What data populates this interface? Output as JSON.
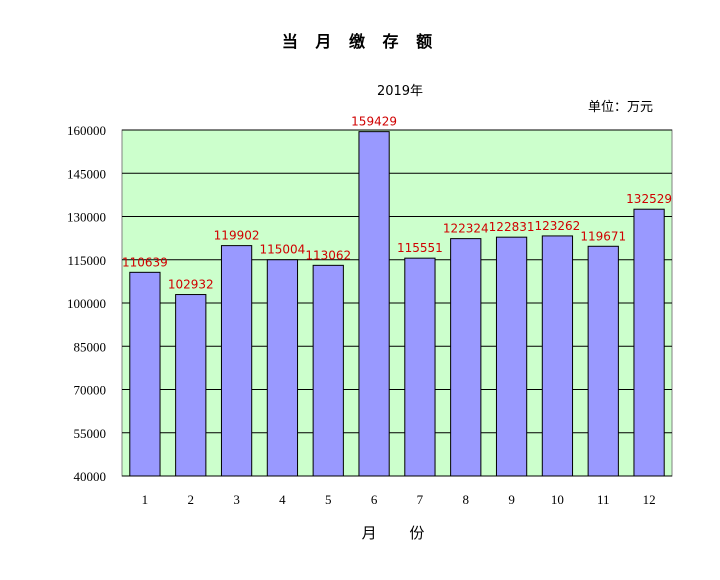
{
  "chart_data": {
    "type": "bar",
    "title": "当 月 缴 存 额",
    "subtitle": "2019年",
    "unit_label": "单位：万元",
    "xlabel": "月  份",
    "ylabel": "",
    "categories": [
      "1",
      "2",
      "3",
      "4",
      "5",
      "6",
      "7",
      "8",
      "9",
      "10",
      "11",
      "12"
    ],
    "values": [
      110639,
      102932,
      119902,
      115004,
      113062,
      159429,
      115551,
      122324,
      122831,
      123262,
      119671,
      132529
    ],
    "ylim": [
      40000,
      160000
    ],
    "yticks": [
      40000,
      55000,
      70000,
      85000,
      100000,
      115000,
      130000,
      145000,
      160000
    ],
    "grid": true,
    "colors": {
      "plot_background": "#ccffcc",
      "bar_fill": "#9999ff",
      "bar_stroke": "#000000",
      "data_label": "#d00000"
    }
  }
}
